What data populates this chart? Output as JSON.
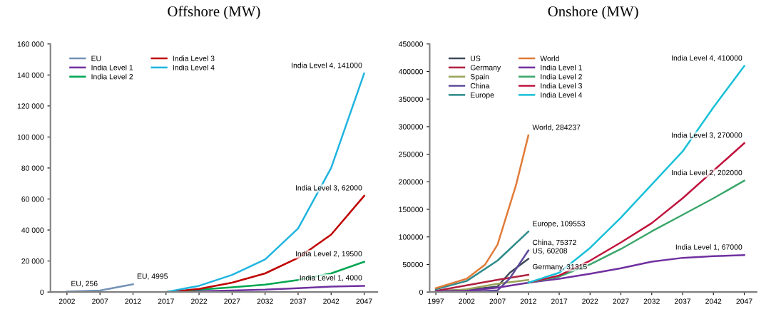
{
  "chart_data": [
    {
      "type": "line",
      "title": "Offshore (MW)",
      "xlim": [
        1999.5,
        2049
      ],
      "xticks": [
        2002,
        2007,
        2012,
        2017,
        2022,
        2027,
        2032,
        2037,
        2042,
        2047
      ],
      "ylim": [
        0,
        160000
      ],
      "yticks": [
        {
          "value": 0,
          "label": "0"
        },
        {
          "value": 20000,
          "label": "20 000"
        },
        {
          "value": 40000,
          "label": "40 000"
        },
        {
          "value": 60000,
          "label": "60 000"
        },
        {
          "value": 80000,
          "label": "80 000"
        },
        {
          "value": 100000,
          "label": "100 000"
        },
        {
          "value": 120000,
          "label": "120 000"
        },
        {
          "value": 140000,
          "label": "140 000"
        },
        {
          "value": 160000,
          "label": "160 000"
        }
      ],
      "grid": false,
      "legend": "top left",
      "marker": "none",
      "line_style": "solid",
      "series": [
        {
          "name": "EU",
          "color": "#7391b5",
          "x": [
            2002,
            2007,
            2012
          ],
          "values": [
            256,
            1000,
            4995
          ]
        },
        {
          "name": "India Level 1",
          "color": "#7030a0",
          "x": [
            2017,
            2022,
            2027,
            2032,
            2037,
            2042,
            2047
          ],
          "values": [
            0,
            500,
            1000,
            1500,
            2500,
            3500,
            4000
          ]
        },
        {
          "name": "India Level 2",
          "color": "#00a651",
          "x": [
            2017,
            2022,
            2027,
            2032,
            2037,
            2042,
            2047
          ],
          "values": [
            0,
            1500,
            3000,
            4800,
            7800,
            12000,
            19500
          ]
        },
        {
          "name": "India Level 3",
          "color": "#c00000",
          "x": [
            2017,
            2022,
            2027,
            2032,
            2037,
            2042,
            2047
          ],
          "values": [
            0,
            2000,
            6000,
            12000,
            22000,
            37000,
            62000
          ]
        },
        {
          "name": "India Level 4",
          "color": "#1fb4e0",
          "x": [
            2017,
            2022,
            2027,
            2032,
            2037,
            2042,
            2047
          ],
          "values": [
            0,
            4000,
            11000,
            21000,
            41000,
            80000,
            141000
          ]
        }
      ],
      "annotations": [
        {
          "text": "EU, 256",
          "x": 2002,
          "y": 256
        },
        {
          "text": "EU, 4995",
          "x": 2012,
          "y": 4995
        },
        {
          "text": "India Level 4, 141000",
          "x": 2047,
          "y": 141000
        },
        {
          "text": "India Level 3, 62000",
          "x": 2047,
          "y": 62000
        },
        {
          "text": "India Level 2, 19500",
          "x": 2047,
          "y": 19500
        },
        {
          "text": "India Level 1, 4000",
          "x": 2047,
          "y": 4000
        }
      ]
    },
    {
      "type": "line",
      "title": "Onshore (MW)",
      "xlim": [
        1996,
        2049
      ],
      "xticks": [
        1997,
        2002,
        2007,
        2012,
        2017,
        2022,
        2027,
        2032,
        2037,
        2042,
        2047
      ],
      "ylim": [
        0,
        450000
      ],
      "yticks": [
        0,
        50000,
        100000,
        150000,
        200000,
        250000,
        300000,
        350000,
        400000,
        450000
      ],
      "grid": false,
      "legend": "top left",
      "marker": "none",
      "line_style": "solid",
      "series": [
        {
          "name": "US",
          "color": "#3f4a5a",
          "x": [
            1997,
            2002,
            2007,
            2009,
            2012
          ],
          "values": [
            2000,
            4000,
            10000,
            35000,
            60208
          ]
        },
        {
          "name": "Germany",
          "color": "#b02040",
          "x": [
            1997,
            2002,
            2007,
            2012
          ],
          "values": [
            2000,
            12000,
            22000,
            31315
          ]
        },
        {
          "name": "Spain",
          "color": "#9aa25a",
          "x": [
            1997,
            2002,
            2007,
            2012
          ],
          "values": [
            500,
            5000,
            15000,
            22000
          ]
        },
        {
          "name": "China",
          "color": "#604a9b",
          "x": [
            1997,
            2002,
            2007,
            2009,
            2012
          ],
          "values": [
            0,
            500,
            3000,
            25000,
            75372
          ]
        },
        {
          "name": "Europe",
          "color": "#2e8b8b",
          "x": [
            1997,
            2002,
            2007,
            2012
          ],
          "values": [
            5000,
            20000,
            57000,
            109553
          ]
        },
        {
          "name": "World",
          "color": "#e07b39",
          "x": [
            1997,
            2002,
            2005,
            2007,
            2010,
            2012
          ],
          "values": [
            7000,
            24000,
            50000,
            86000,
            194000,
            284237
          ]
        },
        {
          "name": "India Level 1",
          "color": "#7030a0",
          "x": [
            1997,
            2002,
            2007,
            2012,
            2017,
            2022,
            2027,
            2032,
            2037,
            2042,
            2047
          ],
          "values": [
            1000,
            2000,
            8000,
            17000,
            24000,
            33000,
            43000,
            55000,
            62000,
            65000,
            67000
          ]
        },
        {
          "name": "India Level 2",
          "color": "#3aa66a",
          "x": [
            2012,
            2017,
            2022,
            2027,
            2032,
            2037,
            2042,
            2047
          ],
          "values": [
            17000,
            28000,
            50000,
            78000,
            110000,
            140000,
            170000,
            202000
          ]
        },
        {
          "name": "India Level 3",
          "color": "#c0143c",
          "x": [
            2012,
            2017,
            2022,
            2027,
            2032,
            2037,
            2042,
            2047
          ],
          "values": [
            17000,
            30000,
            57000,
            90000,
            125000,
            170000,
            220000,
            270000
          ]
        },
        {
          "name": "India Level 4",
          "color": "#19c0d8",
          "x": [
            2012,
            2017,
            2022,
            2027,
            2032,
            2037,
            2042,
            2047
          ],
          "values": [
            17000,
            35000,
            80000,
            135000,
            195000,
            255000,
            335000,
            410000
          ]
        }
      ],
      "annotations": [
        {
          "text": "World, 284237",
          "x": 2012,
          "y": 284237
        },
        {
          "text": "Europe, 109553",
          "x": 2012,
          "y": 109553
        },
        {
          "text": "China, 75372",
          "x": 2012,
          "y": 75372
        },
        {
          "text": "US, 60208",
          "x": 2012,
          "y": 60208
        },
        {
          "text": "Germany, 31315",
          "x": 2012,
          "y": 31315
        },
        {
          "text": "India Level 4, 410000",
          "x": 2047,
          "y": 410000
        },
        {
          "text": "India Level 3, 270000",
          "x": 2047,
          "y": 270000
        },
        {
          "text": "India Level 2, 202000",
          "x": 2047,
          "y": 202000
        },
        {
          "text": "India Level 1, 67000",
          "x": 2047,
          "y": 67000
        }
      ]
    }
  ]
}
